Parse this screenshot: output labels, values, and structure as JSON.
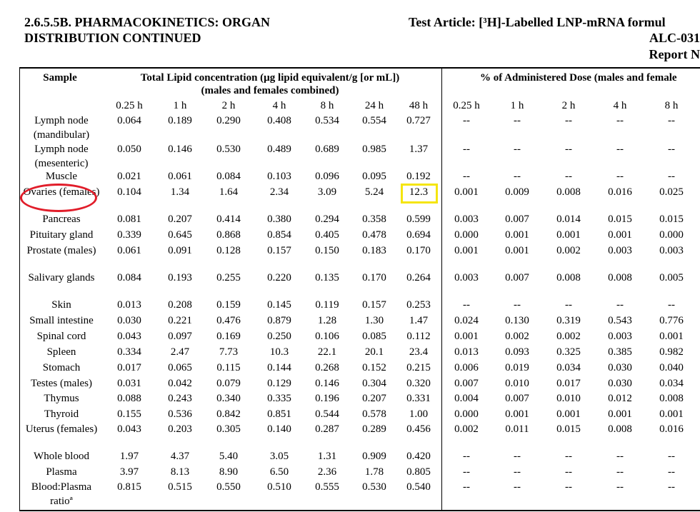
{
  "header": {
    "section_line1": "2.6.5.5B.  PHARMACOKINETICS: ORGAN",
    "section_line2": "DISTRIBUTION CONTINUED",
    "test_article": "Test Article: [³H]-Labelled LNP-mRNA formul",
    "test_article_line2": "ALC-031",
    "report": "Report N"
  },
  "table": {
    "sample_header": "Sample",
    "group1_header_line1": "Total Lipid concentration (µg lipid equivalent/g [or mL])",
    "group1_header_line2": "(males and females combined)",
    "group2_header": "% of Administered Dose (males and female",
    "group1_timepoints": [
      "0.25 h",
      "1 h",
      "2 h",
      "4 h",
      "8 h",
      "24 h",
      "48 h"
    ],
    "group2_timepoints": [
      "0.25 h",
      "1 h",
      "2 h",
      "4 h",
      "8 h"
    ],
    "rows": [
      {
        "sample": "Lymph node (mandibular)",
        "conc": [
          "0.064",
          "0.189",
          "0.290",
          "0.408",
          "0.534",
          "0.554",
          "0.727"
        ],
        "dose": [
          "--",
          "--",
          "--",
          "--",
          "--"
        ]
      },
      {
        "sample": "Lymph node (mesenteric)",
        "conc": [
          "0.050",
          "0.146",
          "0.530",
          "0.489",
          "0.689",
          "0.985",
          "1.37"
        ],
        "dose": [
          "--",
          "--",
          "--",
          "--",
          "--"
        ]
      },
      {
        "sample": "Muscle",
        "conc": [
          "0.021",
          "0.061",
          "0.084",
          "0.103",
          "0.096",
          "0.095",
          "0.192"
        ],
        "dose": [
          "--",
          "--",
          "--",
          "--",
          "--"
        ]
      },
      {
        "sample": "Ovaries (females)",
        "conc": [
          "0.104",
          "1.34",
          "1.64",
          "2.34",
          "3.09",
          "5.24",
          "12.3"
        ],
        "dose": [
          "0.001",
          "0.009",
          "0.008",
          "0.016",
          "0.025"
        ]
      },
      {
        "sample": "Pancreas",
        "conc": [
          "0.081",
          "0.207",
          "0.414",
          "0.380",
          "0.294",
          "0.358",
          "0.599"
        ],
        "dose": [
          "0.003",
          "0.007",
          "0.014",
          "0.015",
          "0.015"
        ]
      },
      {
        "sample": "Pituitary gland",
        "conc": [
          "0.339",
          "0.645",
          "0.868",
          "0.854",
          "0.405",
          "0.478",
          "0.694"
        ],
        "dose": [
          "0.000",
          "0.001",
          "0.001",
          "0.001",
          "0.000"
        ]
      },
      {
        "sample": "Prostate (males)",
        "conc": [
          "0.061",
          "0.091",
          "0.128",
          "0.157",
          "0.150",
          "0.183",
          "0.170"
        ],
        "dose": [
          "0.001",
          "0.001",
          "0.002",
          "0.003",
          "0.003"
        ]
      },
      {
        "sample": "Salivary glands",
        "conc": [
          "0.084",
          "0.193",
          "0.255",
          "0.220",
          "0.135",
          "0.170",
          "0.264"
        ],
        "dose": [
          "0.003",
          "0.007",
          "0.008",
          "0.008",
          "0.005"
        ]
      },
      {
        "sample": "Skin",
        "conc": [
          "0.013",
          "0.208",
          "0.159",
          "0.145",
          "0.119",
          "0.157",
          "0.253"
        ],
        "dose": [
          "--",
          "--",
          "--",
          "--",
          "--"
        ]
      },
      {
        "sample": "Small intestine",
        "conc": [
          "0.030",
          "0.221",
          "0.476",
          "0.879",
          "1.28",
          "1.30",
          "1.47"
        ],
        "dose": [
          "0.024",
          "0.130",
          "0.319",
          "0.543",
          "0.776"
        ]
      },
      {
        "sample": "Spinal cord",
        "conc": [
          "0.043",
          "0.097",
          "0.169",
          "0.250",
          "0.106",
          "0.085",
          "0.112"
        ],
        "dose": [
          "0.001",
          "0.002",
          "0.002",
          "0.003",
          "0.001"
        ]
      },
      {
        "sample": "Spleen",
        "conc": [
          "0.334",
          "2.47",
          "7.73",
          "10.3",
          "22.1",
          "20.1",
          "23.4"
        ],
        "dose": [
          "0.013",
          "0.093",
          "0.325",
          "0.385",
          "0.982"
        ]
      },
      {
        "sample": "Stomach",
        "conc": [
          "0.017",
          "0.065",
          "0.115",
          "0.144",
          "0.268",
          "0.152",
          "0.215"
        ],
        "dose": [
          "0.006",
          "0.019",
          "0.034",
          "0.030",
          "0.040"
        ]
      },
      {
        "sample": "Testes (males)",
        "conc": [
          "0.031",
          "0.042",
          "0.079",
          "0.129",
          "0.146",
          "0.304",
          "0.320"
        ],
        "dose": [
          "0.007",
          "0.010",
          "0.017",
          "0.030",
          "0.034"
        ]
      },
      {
        "sample": "Thymus",
        "conc": [
          "0.088",
          "0.243",
          "0.340",
          "0.335",
          "0.196",
          "0.207",
          "0.331"
        ],
        "dose": [
          "0.004",
          "0.007",
          "0.010",
          "0.012",
          "0.008"
        ]
      },
      {
        "sample": "Thyroid",
        "conc": [
          "0.155",
          "0.536",
          "0.842",
          "0.851",
          "0.544",
          "0.578",
          "1.00"
        ],
        "dose": [
          "0.000",
          "0.001",
          "0.001",
          "0.001",
          "0.001"
        ]
      },
      {
        "sample": "Uterus (females)",
        "conc": [
          "0.043",
          "0.203",
          "0.305",
          "0.140",
          "0.287",
          "0.289",
          "0.456"
        ],
        "dose": [
          "0.002",
          "0.011",
          "0.015",
          "0.008",
          "0.016"
        ]
      },
      {
        "sample": "Whole blood",
        "conc": [
          "1.97",
          "4.37",
          "5.40",
          "3.05",
          "1.31",
          "0.909",
          "0.420"
        ],
        "dose": [
          "--",
          "--",
          "--",
          "--",
          "--"
        ]
      },
      {
        "sample": "Plasma",
        "conc": [
          "3.97",
          "8.13",
          "8.90",
          "6.50",
          "2.36",
          "1.78",
          "0.805"
        ],
        "dose": [
          "--",
          "--",
          "--",
          "--",
          "--"
        ]
      },
      {
        "sample": "Blood:Plasma ratioª",
        "conc": [
          "0.815",
          "0.515",
          "0.550",
          "0.510",
          "0.555",
          "0.530",
          "0.540"
        ],
        "dose": [
          "--",
          "--",
          "--",
          "--",
          "--"
        ]
      }
    ]
  },
  "annotations": {
    "circle_color": "#e11d2a",
    "box_color": "#f5e50e"
  }
}
